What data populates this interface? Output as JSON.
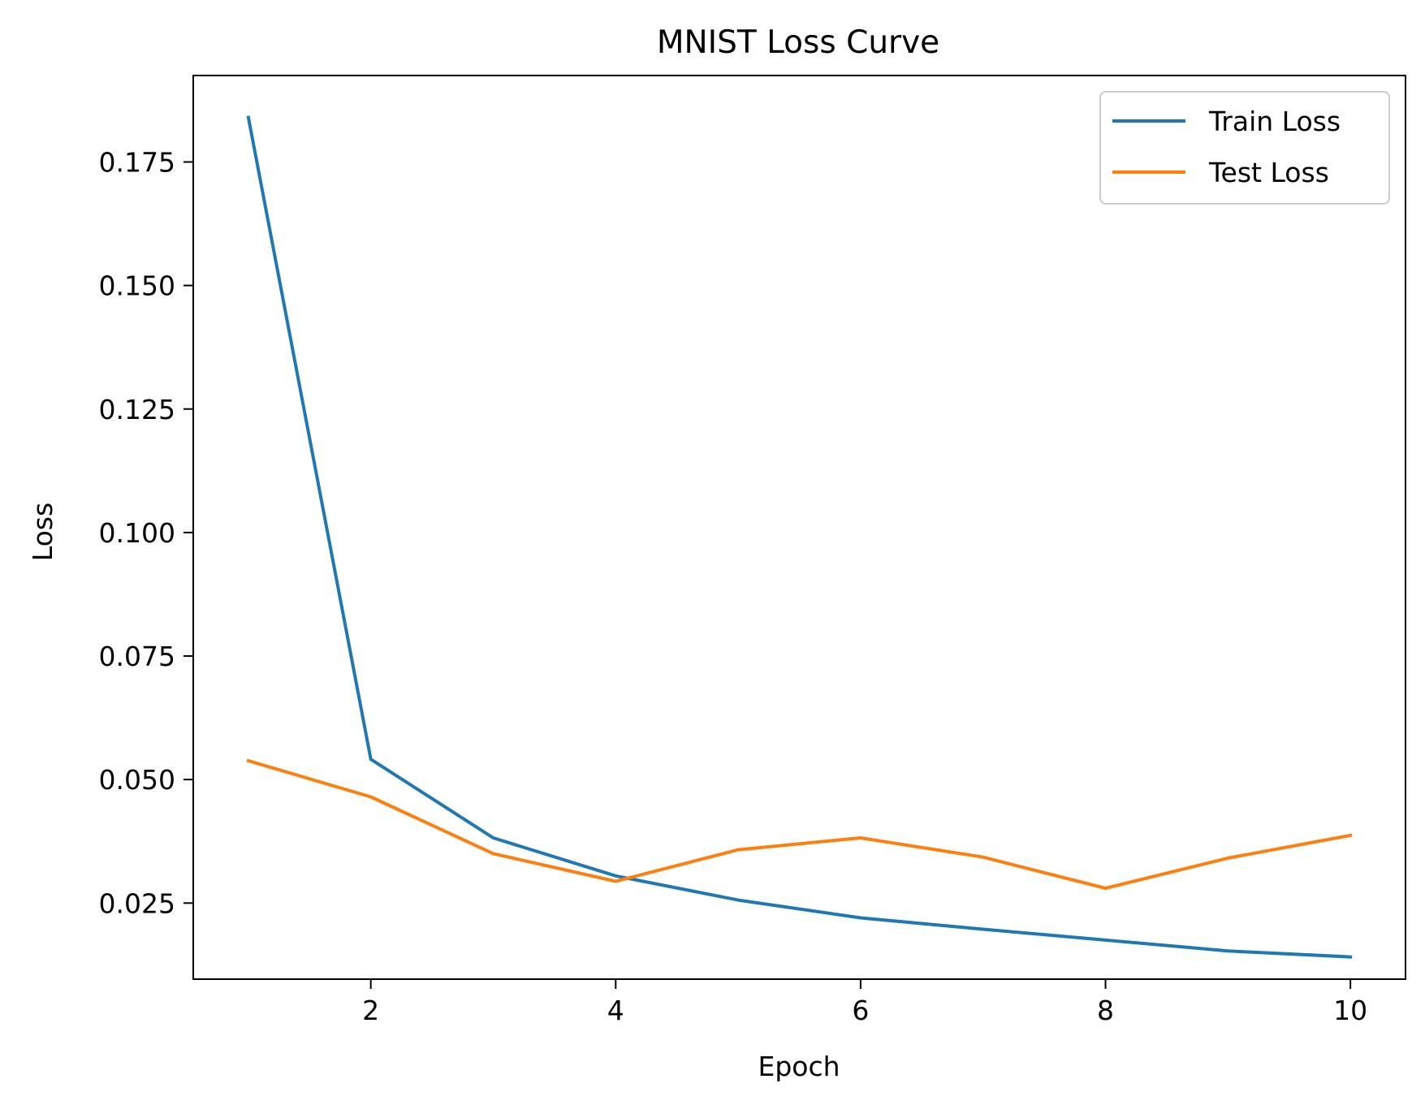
{
  "chart_data": {
    "type": "line",
    "title": "MNIST Loss Curve",
    "xlabel": "Epoch",
    "ylabel": "Loss",
    "x": [
      1,
      2,
      3,
      4,
      5,
      6,
      7,
      8,
      9,
      10
    ],
    "series": [
      {
        "name": "Train Loss",
        "color": "#1f77b4",
        "values": [
          0.184,
          0.0541,
          0.0382,
          0.0305,
          0.0256,
          0.022,
          0.0197,
          0.0175,
          0.0153,
          0.0141
        ]
      },
      {
        "name": "Test Loss",
        "color": "#ff7f0e",
        "values": [
          0.0538,
          0.0465,
          0.035,
          0.0294,
          0.0358,
          0.0382,
          0.0343,
          0.028,
          0.0341,
          0.0387
        ]
      }
    ],
    "xlim": [
      0.55,
      10.45
    ],
    "ylim": [
      0.0096,
      0.1925
    ],
    "xticks": [
      {
        "value": 2,
        "label": "2"
      },
      {
        "value": 4,
        "label": "4"
      },
      {
        "value": 6,
        "label": "6"
      },
      {
        "value": 8,
        "label": "8"
      },
      {
        "value": 10,
        "label": "10"
      }
    ],
    "yticks": [
      {
        "value": 0.025,
        "label": "0.025"
      },
      {
        "value": 0.05,
        "label": "0.050"
      },
      {
        "value": 0.075,
        "label": "0.075"
      },
      {
        "value": 0.1,
        "label": "0.100"
      },
      {
        "value": 0.125,
        "label": "0.125"
      },
      {
        "value": 0.15,
        "label": "0.150"
      },
      {
        "value": 0.175,
        "label": "0.175"
      }
    ],
    "grid": false,
    "legend_position": "top-right"
  }
}
